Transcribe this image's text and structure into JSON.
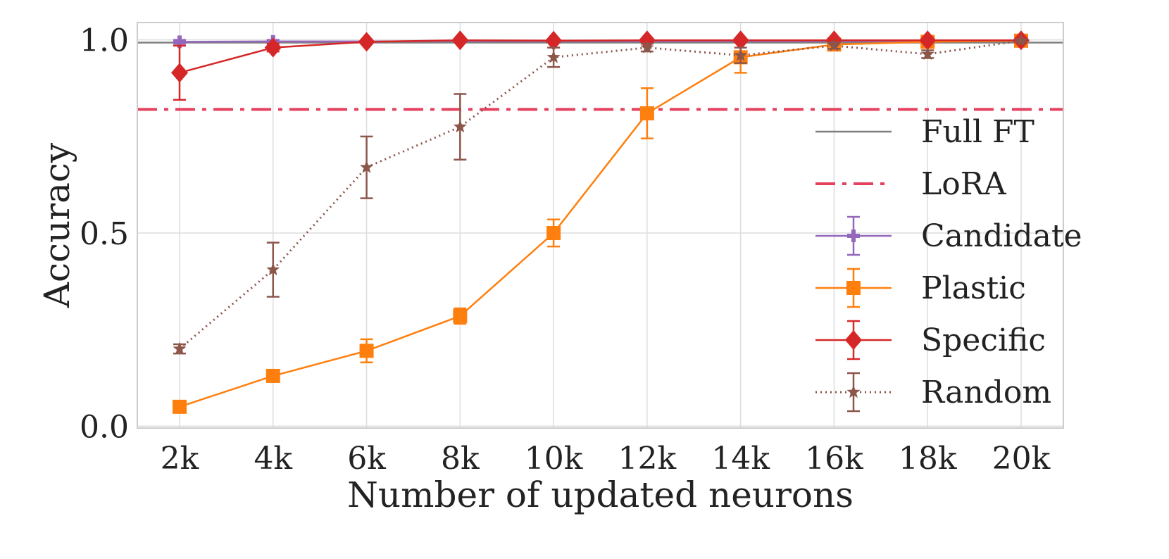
{
  "chart_data": {
    "type": "line",
    "xlabel": "Number of updated neurons",
    "ylabel": "Accuracy",
    "categories": [
      "2k",
      "4k",
      "6k",
      "8k",
      "10k",
      "12k",
      "14k",
      "16k",
      "18k",
      "20k"
    ],
    "ylim": [
      -0.005,
      1.045
    ],
    "yticks": [
      0.0,
      0.5,
      1.0
    ],
    "ytick_labels": [
      "0.0",
      "0.5",
      "1.0"
    ],
    "grid": true,
    "legend_position": "right",
    "reference_lines": [
      {
        "name": "Full FT",
        "value": 0.993,
        "color": "#7f7f7f",
        "style": "solid"
      },
      {
        "name": "LoRA",
        "value": 0.82,
        "color": "#e5405e",
        "style": "dashdot"
      }
    ],
    "series": [
      {
        "name": "Candidate",
        "color": "#9467bd",
        "marker": "plus",
        "line": "solid",
        "values": [
          0.995,
          0.996,
          0.996,
          0.997,
          0.997,
          0.997,
          0.997,
          0.997,
          0.997,
          0.998
        ],
        "errors": [
          0.005,
          0.004,
          0.003,
          0.002,
          0.002,
          0.002,
          0.002,
          0.002,
          0.002,
          0.002
        ]
      },
      {
        "name": "Plastic",
        "color": "#ff7f0e",
        "marker": "square",
        "line": "solid",
        "values": [
          0.05,
          0.13,
          0.195,
          0.285,
          0.5,
          0.81,
          0.955,
          0.988,
          0.995,
          0.998
        ],
        "errors": [
          0.008,
          0.01,
          0.03,
          0.02,
          0.035,
          0.065,
          0.04,
          0.01,
          0.004,
          0.004
        ]
      },
      {
        "name": "Specific",
        "color": "#d62728",
        "marker": "diamond",
        "line": "solid",
        "values": [
          0.915,
          0.98,
          0.995,
          0.999,
          0.998,
          0.999,
          0.999,
          0.999,
          0.999,
          0.999
        ],
        "errors": [
          0.07,
          0.01,
          0.004,
          0.002,
          0.002,
          0.002,
          0.002,
          0.002,
          0.002,
          0.002
        ]
      },
      {
        "name": "Random",
        "color": "#8c564b",
        "marker": "star",
        "line": "dotted",
        "values": [
          0.2,
          0.405,
          0.67,
          0.775,
          0.955,
          0.98,
          0.96,
          0.985,
          0.963,
          0.998
        ],
        "errors": [
          0.012,
          0.07,
          0.08,
          0.085,
          0.025,
          0.01,
          0.02,
          0.008,
          0.01,
          0.003
        ]
      }
    ]
  }
}
